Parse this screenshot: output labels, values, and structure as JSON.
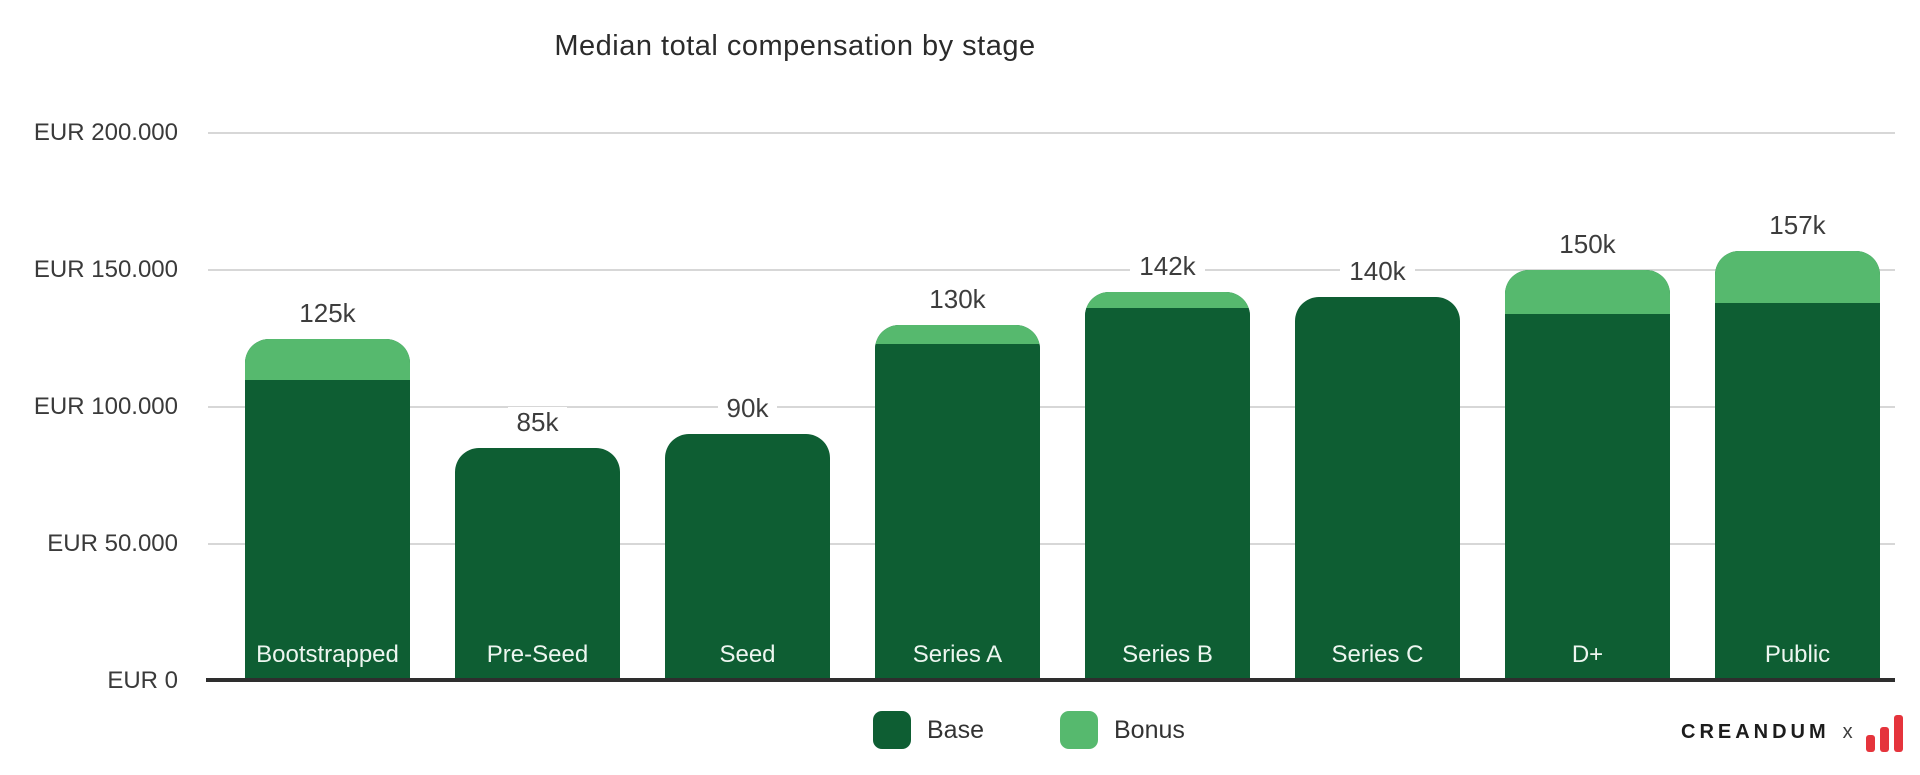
{
  "chart_data": {
    "type": "bar",
    "stacked": true,
    "title": "Median total compensation by stage",
    "categories": [
      "Bootstrapped",
      "Pre-Seed",
      "Seed",
      "Series A",
      "Series B",
      "Series C",
      "D+",
      "Public"
    ],
    "series": [
      {
        "name": "Base",
        "color": "#0e5e33",
        "values_k": [
          110,
          85,
          90,
          123,
          136,
          140,
          134,
          138
        ]
      },
      {
        "name": "Bonus",
        "color": "#56b96e",
        "values_k": [
          15,
          0,
          0,
          7,
          6,
          0,
          16,
          19
        ]
      }
    ],
    "totals_k": [
      125,
      85,
      90,
      130,
      142,
      140,
      150,
      157
    ],
    "total_labels": [
      "125k",
      "85k",
      "90k",
      "130k",
      "142k",
      "140k",
      "150k",
      "157k"
    ],
    "y_axis": {
      "unit": "EUR",
      "ticks_k": [
        0,
        50,
        100,
        150,
        200
      ],
      "tick_labels": [
        "EUR 0",
        "EUR 50.000",
        "EUR 100.000",
        "EUR 150.000",
        "EUR 200.000"
      ]
    },
    "ylim_k": [
      0,
      200
    ],
    "grid": true,
    "legend": {
      "position": "bottom",
      "items": [
        "Base",
        "Bonus"
      ]
    }
  },
  "branding": {
    "name": "CREANDUM",
    "separator": "x",
    "logo_icon": "red-bar-chart-icon",
    "logo_color": "#e5343c"
  }
}
